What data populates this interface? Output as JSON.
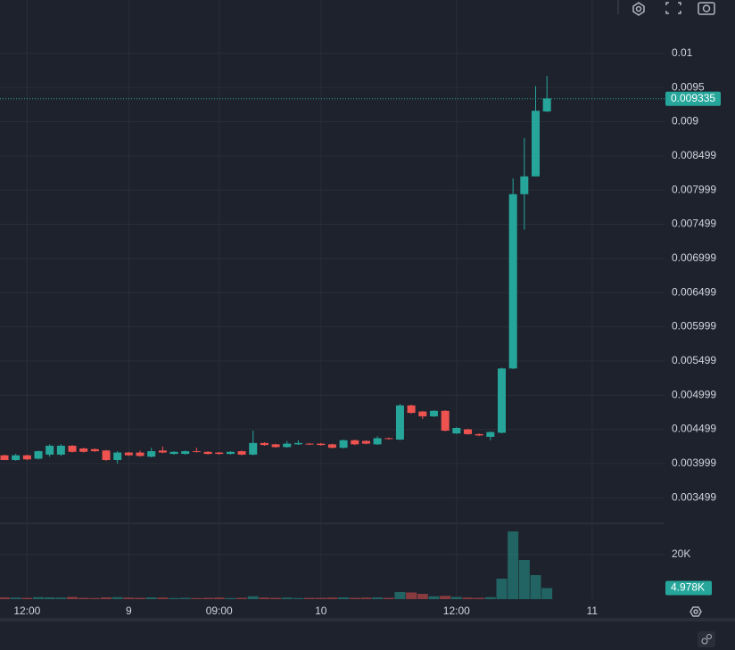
{
  "chart_data": {
    "type": "candlestick",
    "categories": [
      null,
      null,
      "12:00",
      null,
      null,
      null,
      null,
      null,
      null,
      null,
      null,
      "9",
      null,
      null,
      null,
      null,
      null,
      null,
      null,
      "09:00",
      null,
      null,
      null,
      null,
      null,
      null,
      null,
      null,
      "10",
      null,
      null,
      null,
      null,
      null,
      null,
      null,
      null,
      null,
      null,
      null,
      "12:00",
      null,
      null,
      null,
      null,
      null,
      null,
      null,
      null,
      null,
      null,
      null,
      "11"
    ],
    "open": [
      0.00412,
      0.00405,
      0.00412,
      0.00407,
      0.00413,
      0.00413,
      0.00426,
      0.00422,
      0.00421,
      0.00419,
      0.00405,
      0.00416,
      0.00416,
      0.0041,
      0.00419,
      0.00414,
      0.00414,
      0.00418,
      0.00417,
      0.00416,
      0.00414,
      0.00418,
      0.00413,
      0.0043,
      0.00428,
      0.00424,
      0.00428,
      0.00429,
      0.00429,
      0.00428,
      0.00423,
      0.00434,
      0.00433,
      0.00428,
      0.00437,
      0.00435,
      0.00485,
      0.00476,
      0.00469,
      0.00477,
      0.00444,
      0.0045,
      0.00443,
      0.00439,
      0.00445,
      0.00539,
      0.00794,
      0.0082,
      0.00915,
      null,
      null,
      null,
      null
    ],
    "high": [
      0.00413,
      0.00414,
      0.00413,
      0.00419,
      0.00428,
      0.00428,
      0.00427,
      0.00423,
      0.00422,
      0.0042,
      0.00418,
      0.00417,
      0.00419,
      0.00423,
      0.00425,
      0.00418,
      0.00419,
      0.00423,
      0.00418,
      0.00417,
      0.00418,
      0.00419,
      0.00448,
      0.00431,
      0.00429,
      0.00433,
      0.00434,
      0.0043,
      0.0043,
      0.00429,
      0.00435,
      0.00435,
      0.00434,
      0.0044,
      0.00438,
      0.00487,
      0.00486,
      0.00477,
      0.00478,
      0.00478,
      0.00453,
      0.00451,
      0.00444,
      0.00447,
      0.0054,
      0.00817,
      0.00876,
      0.00952,
      0.00967,
      null,
      null,
      null,
      null
    ],
    "low": [
      0.00405,
      0.00404,
      0.00405,
      0.00406,
      0.0041,
      0.00411,
      0.00416,
      0.00416,
      0.00417,
      0.00404,
      0.004,
      0.00411,
      0.0041,
      0.00409,
      0.00415,
      0.00413,
      0.00413,
      0.00416,
      0.00413,
      0.00413,
      0.00413,
      0.00412,
      0.00412,
      0.00426,
      0.00423,
      0.00423,
      0.00427,
      0.00427,
      0.00426,
      0.00422,
      0.00422,
      0.00427,
      0.00428,
      0.00427,
      0.00435,
      0.00434,
      0.00473,
      0.00465,
      0.00468,
      0.00447,
      0.00443,
      0.00442,
      0.0044,
      0.00434,
      0.00444,
      0.00538,
      0.00742,
      0.0082,
      0.00914,
      null,
      null,
      null,
      null
    ],
    "close": [
      0.00405,
      0.00412,
      0.00406,
      0.00418,
      0.00426,
      0.00426,
      0.00417,
      0.00417,
      0.00418,
      0.00405,
      0.00416,
      0.00412,
      0.00411,
      0.00418,
      0.00416,
      0.00417,
      0.00418,
      0.00417,
      0.00414,
      0.00414,
      0.00417,
      0.00413,
      0.0043,
      0.00427,
      0.00424,
      0.00429,
      0.0043,
      0.00428,
      0.00427,
      0.00423,
      0.00434,
      0.00428,
      0.00429,
      0.00437,
      0.00436,
      0.00485,
      0.00474,
      0.00469,
      0.00477,
      0.00448,
      0.00452,
      0.00443,
      0.00441,
      0.00446,
      0.00539,
      0.00794,
      0.0082,
      0.00916,
      0.00934,
      null,
      null,
      null,
      null
    ],
    "volume": [
      800,
      700,
      600,
      900,
      800,
      700,
      1000,
      600,
      500,
      800,
      900,
      700,
      600,
      800,
      700,
      500,
      600,
      500,
      600,
      700,
      500,
      600,
      1300,
      700,
      600,
      700,
      500,
      600,
      600,
      700,
      800,
      600,
      700,
      800,
      600,
      3200,
      3000,
      2400,
      1300,
      1500,
      1000,
      700,
      600,
      900,
      9200,
      30400,
      17600,
      10800,
      4978,
      null,
      null,
      null,
      null
    ],
    "up_color": "#26a69a",
    "down_color": "#ef5350",
    "ylim": [
      0.00315,
      0.01078
    ],
    "yticks": [
      0.01,
      0.0095,
      0.009,
      0.008499,
      0.007999,
      0.007499,
      0.006999,
      0.006499,
      0.005999,
      0.005499,
      0.004999,
      0.004499,
      0.003999,
      0.003499
    ],
    "volume_lim": [
      0,
      34000
    ],
    "volume_ticks": [
      {
        "value": 20000,
        "label": "20K"
      }
    ],
    "last_price": 0.009335,
    "last_volume": {
      "value": 4978,
      "label": "4.978K"
    },
    "grid": true
  }
}
